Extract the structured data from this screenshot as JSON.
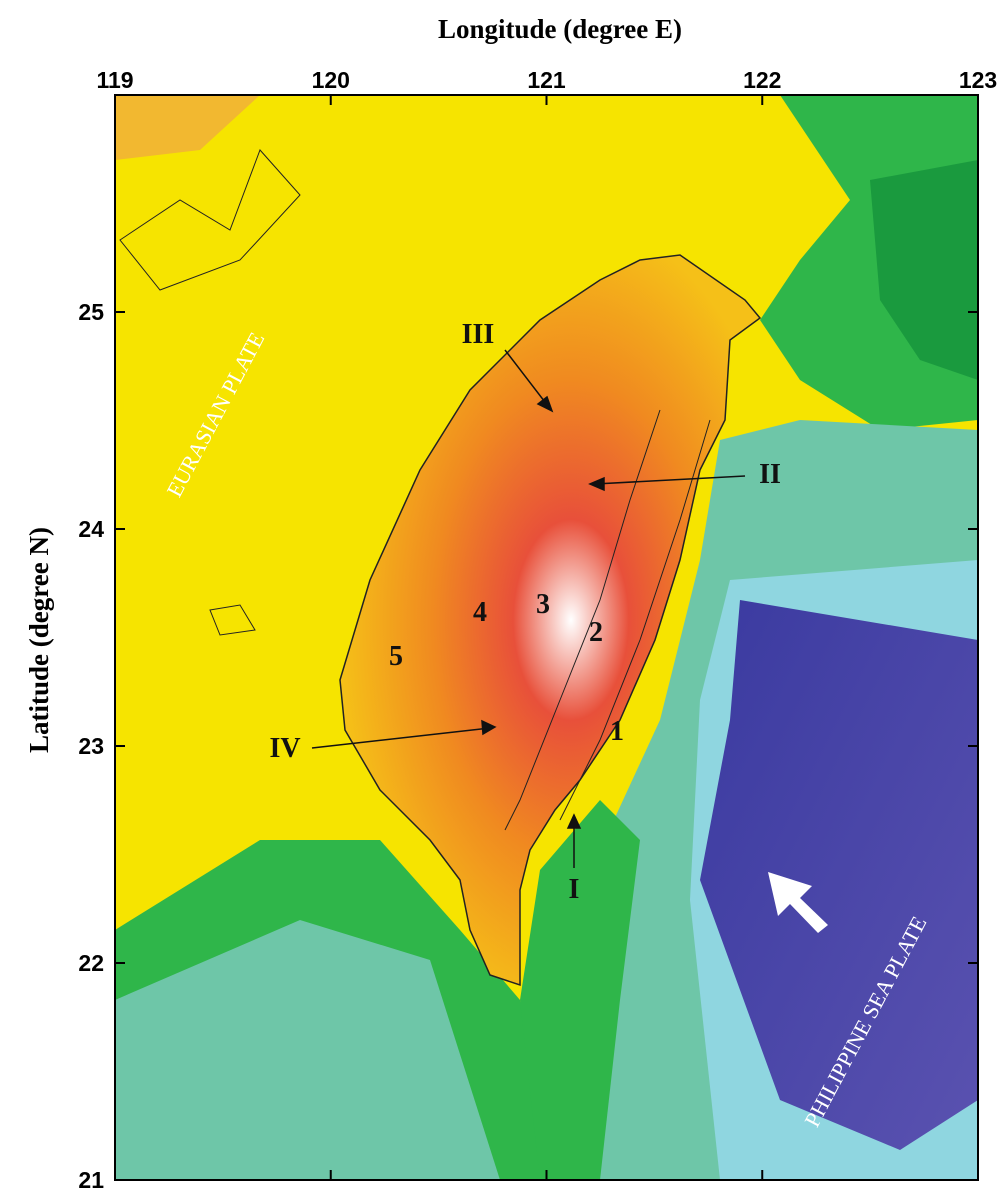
{
  "map": {
    "x_label": "Longitude (degree E)",
    "y_label": "Latitude (degree N)",
    "xlim": [
      119,
      123
    ],
    "ylim": [
      21,
      26
    ],
    "xticks": [
      119,
      120,
      121,
      122,
      123
    ],
    "yticks": [
      21,
      22,
      23,
      24,
      25
    ],
    "plates": [
      "EURASIAN PLATE",
      "PHILIPPINE SEA PLATE"
    ],
    "zones": [
      "I",
      "II",
      "III",
      "IV"
    ],
    "regions": [
      "1",
      "2",
      "3",
      "4",
      "5"
    ]
  }
}
